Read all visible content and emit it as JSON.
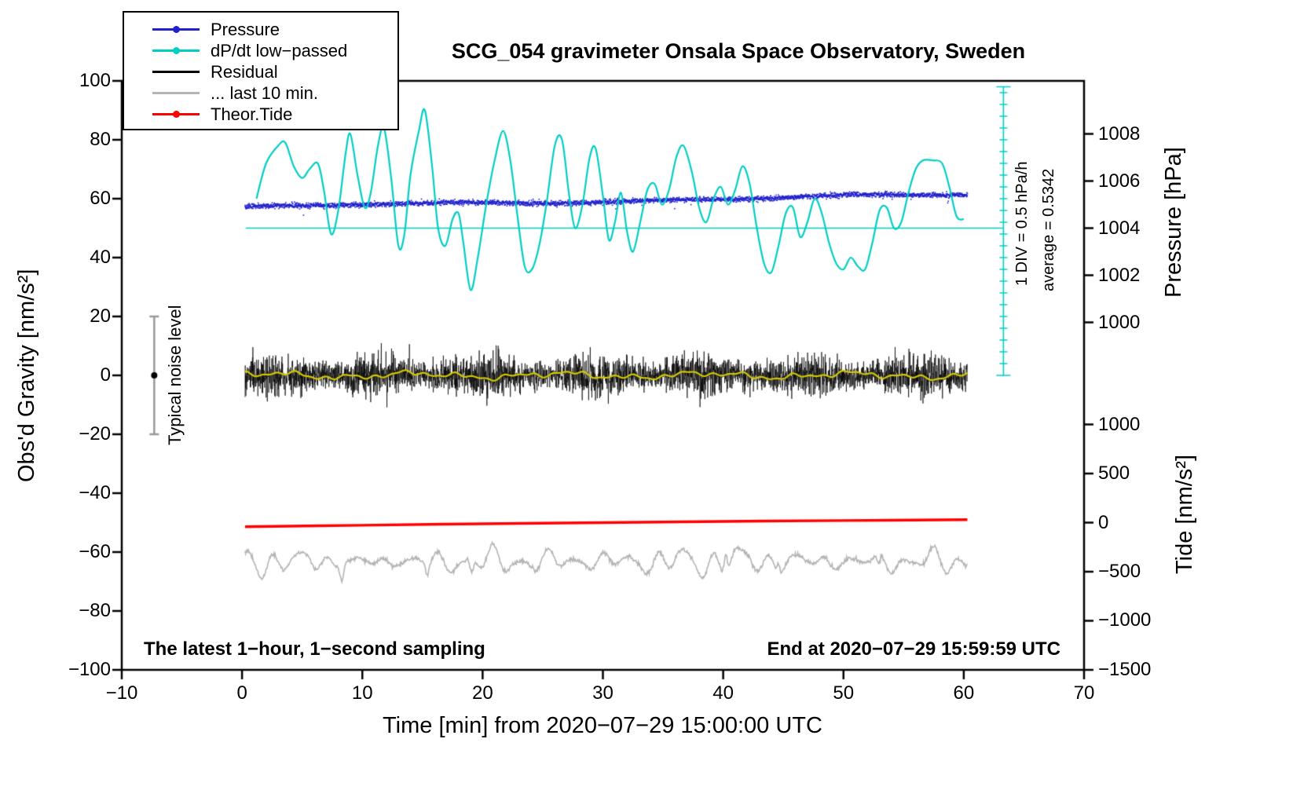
{
  "legend": {
    "items": [
      {
        "label": "Pressure",
        "color": "#2121cc",
        "marker": true
      },
      {
        "label": "dP/dt low−passed",
        "color": "#00cdc3",
        "marker": true
      },
      {
        "label": "Residual",
        "color": "#000000",
        "marker": false
      },
      {
        "label": "... last 10 min.",
        "color": "#b4b4b4",
        "marker": false
      },
      {
        "label": "Theor.Tide",
        "color": "#ff0000",
        "marker": true
      }
    ]
  },
  "annotations": {
    "sampling_note": "The latest 1−hour, 1−second sampling",
    "end_note": "End at 2020−07−29 15:59:59 UTC",
    "div_note": "1 DIV = 0.5 hPa/h",
    "average_note": "average = 0.5342"
  },
  "chart_data": {
    "type": "line",
    "title": "SCG_054 gravimeter Onsala Space Observatory, Sweden",
    "xlabel": "Time [min] from 2020−07−29 15:00:00 UTC",
    "ylabel": "Obs'd Gravity [nm/s²]",
    "ylabel_right_pressure": "Pressure [hPa]",
    "ylabel_right_tide": "Tide [nm/s²]",
    "grid": false,
    "legend_position": "top-left",
    "x_axis": {
      "min": -10,
      "max": 70,
      "ticks": [
        -10,
        0,
        10,
        20,
        30,
        40,
        50,
        60,
        70
      ]
    },
    "y_axis": {
      "min": -100,
      "max": 100,
      "ticks": [
        -100,
        -80,
        -60,
        -40,
        -20,
        0,
        20,
        40,
        60,
        80,
        100
      ]
    },
    "pressure_axis": {
      "ticks": [
        1008,
        1006,
        1004,
        1002,
        1000
      ],
      "hpa_ref": 1004,
      "gravity_ref": 50,
      "gravity_per_hpa": 8
    },
    "tide_axis": {
      "ticks": [
        1000,
        500,
        0,
        -500,
        -1000,
        -1500
      ],
      "tide_ref": 0,
      "gravity_ref": -50,
      "gravity_per_unit": 0.0333333
    },
    "reference_line": {
      "y": 50,
      "x_start": 0.3,
      "x_end": 63.3,
      "color": "#00cdc3"
    },
    "scale_bar": {
      "x": 63.3,
      "y_bottom": 0,
      "y_top": 98,
      "div_units": 4,
      "color": "#00cdc3"
    },
    "noise_bar": {
      "x": -7.3,
      "center": 0,
      "half_range": 20,
      "label": "Typical noise level",
      "bar_color": "#999999",
      "dot_color": "#000000"
    },
    "series": [
      {
        "id": "pressure",
        "name": "Pressure",
        "color": "#2121cc",
        "style": "dots",
        "x_start": 0.25,
        "x_end": 60.3,
        "n_points": 3600,
        "gravity_start": 57.1,
        "gravity_end": 61.4,
        "noise_sigma": 0.42,
        "hpa_start": 1004.89,
        "hpa_end": 1005.43,
        "average_hpa_per_h": 0.5342
      },
      {
        "id": "dpdt",
        "name": "dP/dt low−passed",
        "color": "#00cdc3",
        "style": "smooth",
        "line_width": 2.2,
        "points": [
          [
            1.2,
            60
          ],
          [
            2,
            72
          ],
          [
            3,
            78
          ],
          [
            3.6,
            79
          ],
          [
            4.3,
            71
          ],
          [
            5,
            67
          ],
          [
            5.6,
            70
          ],
          [
            6.3,
            72
          ],
          [
            6.8,
            63
          ],
          [
            7.4,
            48
          ],
          [
            8,
            56
          ],
          [
            8.6,
            75
          ],
          [
            9,
            82
          ],
          [
            9.6,
            68
          ],
          [
            10.2,
            57
          ],
          [
            10.7,
            62
          ],
          [
            11.3,
            78
          ],
          [
            11.8,
            84
          ],
          [
            12.4,
            67
          ],
          [
            13,
            44
          ],
          [
            13.5,
            48
          ],
          [
            14,
            68
          ],
          [
            14.7,
            83
          ],
          [
            15.2,
            90
          ],
          [
            15.8,
            71
          ],
          [
            16.3,
            50
          ],
          [
            16.9,
            44
          ],
          [
            17.5,
            53
          ],
          [
            18,
            55
          ],
          [
            18.4,
            45
          ],
          [
            19,
            29
          ],
          [
            19.6,
            40
          ],
          [
            20.3,
            58
          ],
          [
            21,
            73
          ],
          [
            21.7,
            83
          ],
          [
            22.3,
            73
          ],
          [
            22.9,
            54
          ],
          [
            23.5,
            37
          ],
          [
            24.1,
            36
          ],
          [
            24.7,
            44
          ],
          [
            25.3,
            58
          ],
          [
            26,
            78
          ],
          [
            26.6,
            80
          ],
          [
            27.2,
            61
          ],
          [
            27.7,
            50
          ],
          [
            28.3,
            58
          ],
          [
            28.9,
            74
          ],
          [
            29.4,
            77
          ],
          [
            30,
            61
          ],
          [
            30.5,
            46
          ],
          [
            31,
            52
          ],
          [
            31.5,
            62
          ],
          [
            32,
            49
          ],
          [
            32.5,
            42
          ],
          [
            33.1,
            52
          ],
          [
            33.7,
            63
          ],
          [
            34.3,
            65
          ],
          [
            34.9,
            58
          ],
          [
            35.5,
            63
          ],
          [
            36.1,
            74
          ],
          [
            36.7,
            78
          ],
          [
            37.4,
            69
          ],
          [
            38,
            57
          ],
          [
            38.6,
            52
          ],
          [
            39.2,
            60
          ],
          [
            39.8,
            64
          ],
          [
            40.4,
            58
          ],
          [
            41,
            63
          ],
          [
            41.6,
            71
          ],
          [
            42.2,
            65
          ],
          [
            42.8,
            50
          ],
          [
            43.4,
            38
          ],
          [
            44,
            35
          ],
          [
            44.6,
            44
          ],
          [
            45.2,
            55
          ],
          [
            45.8,
            57
          ],
          [
            46.4,
            47
          ],
          [
            47,
            52
          ],
          [
            47.6,
            60
          ],
          [
            48.2,
            55
          ],
          [
            48.8,
            45
          ],
          [
            49.4,
            38
          ],
          [
            50,
            36
          ],
          [
            50.6,
            40
          ],
          [
            51.2,
            37
          ],
          [
            51.8,
            36
          ],
          [
            52.4,
            45
          ],
          [
            53,
            56
          ],
          [
            53.6,
            57
          ],
          [
            54.2,
            50
          ],
          [
            54.8,
            52
          ],
          [
            55.4,
            62
          ],
          [
            56,
            70
          ],
          [
            56.6,
            73
          ],
          [
            57.4,
            73
          ],
          [
            58.2,
            72
          ],
          [
            58.8,
            64
          ],
          [
            59.4,
            54
          ],
          [
            60,
            53
          ]
        ]
      },
      {
        "id": "residual",
        "name": "Residual",
        "color": "#000000",
        "style": "noisy",
        "x_start": 0.25,
        "x_end": 60.3,
        "n_points": 3600,
        "baseline": 0,
        "noise_sigma": 3.0
      },
      {
        "id": "residual_smooth",
        "name": "residual-smoothed",
        "color": "#d2c800",
        "style": "wave",
        "x_start": 0.25,
        "x_end": 60.3,
        "baseline": 0,
        "amplitude": 1.3,
        "line_width": 2.2
      },
      {
        "id": "last10",
        "name": "... last 10 min.",
        "color": "#b4b4b4",
        "style": "wave-noisy",
        "x_start": 0.25,
        "x_end": 60.3,
        "baseline": -63.2,
        "amplitude": 4.5,
        "line_width": 1.6
      },
      {
        "id": "tide",
        "name": "Theor.Tide",
        "color": "#ff0000",
        "style": "smooth",
        "line_width": 3.5,
        "points": [
          [
            0.25,
            -51.4
          ],
          [
            10,
            -50.9
          ],
          [
            20,
            -50.4
          ],
          [
            30,
            -50.0
          ],
          [
            40,
            -49.6
          ],
          [
            50,
            -49.3
          ],
          [
            60.3,
            -49.0
          ]
        ]
      }
    ]
  }
}
